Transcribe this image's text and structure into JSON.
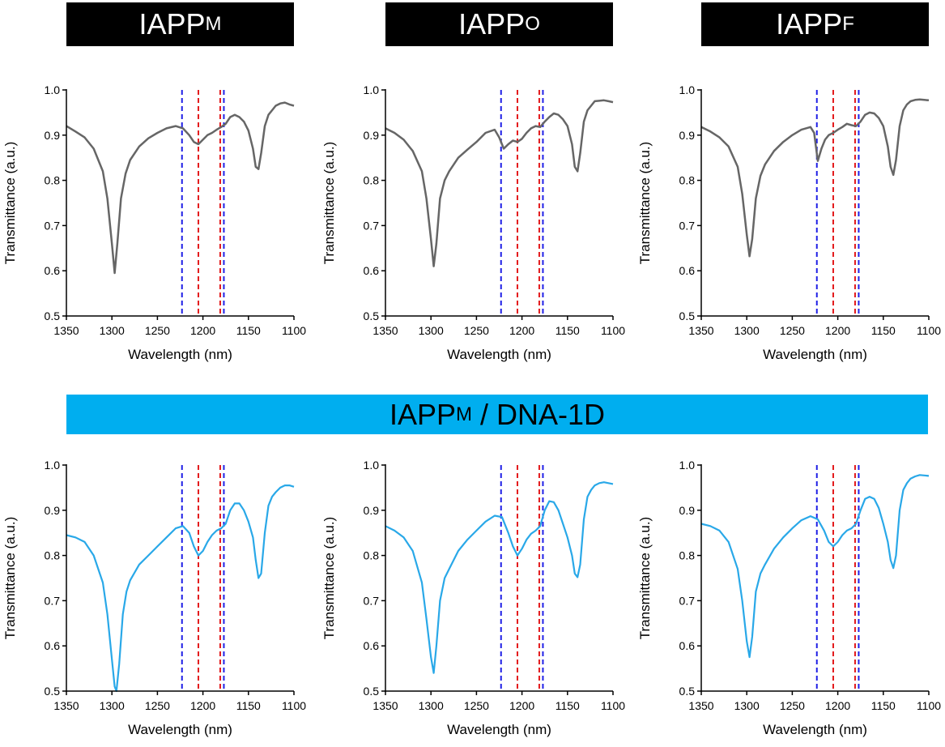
{
  "banners": [
    {
      "base": "IAPP",
      "sub": "M"
    },
    {
      "base": "IAPP",
      "sub": "O"
    },
    {
      "base": "IAPP",
      "sub": "F"
    }
  ],
  "middle_banner": {
    "base": "IAPP",
    "sub": "M",
    "suffix": " / DNA-1D"
  },
  "colors": {
    "top_series": "#666666",
    "bottom_series": "#29a8e8",
    "blue_marker": "#1f1fe6",
    "red_marker": "#e31a1c",
    "banner_black": "#000000",
    "banner_blue": "#00aeef"
  },
  "chart_data": [
    {
      "type": "line",
      "xlabel": "Wavelength (nm)",
      "ylabel": "Transmittance (a.u.)",
      "xlim": [
        1350,
        1100
      ],
      "ylim": [
        0.5,
        1.0
      ],
      "xticks": [
        "1350",
        "1300",
        "1250",
        "1200",
        "1150",
        "1100"
      ],
      "yticks": [
        "0.5",
        "0.6",
        "0.7",
        "0.8",
        "0.9",
        "1.0"
      ],
      "vlines": [
        {
          "x": 1223,
          "color": "blue"
        },
        {
          "x": 1205,
          "color": "red"
        },
        {
          "x": 1181,
          "color": "red"
        },
        {
          "x": 1177,
          "color": "blue"
        }
      ],
      "series": [
        {
          "x": [
            1350,
            1340,
            1330,
            1320,
            1310,
            1305,
            1300,
            1297,
            1294,
            1290,
            1285,
            1280,
            1270,
            1260,
            1250,
            1240,
            1230,
            1222,
            1215,
            1210,
            1205,
            1200,
            1195,
            1190,
            1185,
            1180,
            1175,
            1170,
            1165,
            1160,
            1155,
            1150,
            1145,
            1142,
            1139,
            1136,
            1132,
            1128,
            1124,
            1120,
            1115,
            1110,
            1105,
            1100
          ],
          "y": [
            0.92,
            0.908,
            0.895,
            0.87,
            0.82,
            0.76,
            0.66,
            0.595,
            0.66,
            0.76,
            0.815,
            0.845,
            0.875,
            0.893,
            0.905,
            0.915,
            0.92,
            0.915,
            0.9,
            0.885,
            0.88,
            0.89,
            0.9,
            0.905,
            0.912,
            0.918,
            0.925,
            0.94,
            0.945,
            0.94,
            0.93,
            0.91,
            0.87,
            0.83,
            0.825,
            0.86,
            0.92,
            0.945,
            0.955,
            0.965,
            0.97,
            0.972,
            0.968,
            0.965
          ]
        }
      ]
    },
    {
      "type": "line",
      "xlabel": "Wavelength (nm)",
      "ylabel": "Transmittance (a.u.)",
      "xlim": [
        1350,
        1100
      ],
      "ylim": [
        0.5,
        1.0
      ],
      "xticks": [
        "1350",
        "1300",
        "1250",
        "1200",
        "1150",
        "1100"
      ],
      "yticks": [
        "0.5",
        "0.6",
        "0.7",
        "0.8",
        "0.9",
        "1.0"
      ],
      "vlines": [
        {
          "x": 1223,
          "color": "blue"
        },
        {
          "x": 1205,
          "color": "red"
        },
        {
          "x": 1181,
          "color": "red"
        },
        {
          "x": 1177,
          "color": "blue"
        }
      ],
      "series": [
        {
          "x": [
            1350,
            1340,
            1330,
            1320,
            1310,
            1305,
            1300,
            1297,
            1294,
            1290,
            1285,
            1280,
            1270,
            1260,
            1250,
            1240,
            1230,
            1225,
            1220,
            1215,
            1210,
            1205,
            1200,
            1195,
            1190,
            1185,
            1180,
            1175,
            1170,
            1165,
            1160,
            1155,
            1150,
            1145,
            1142,
            1139,
            1136,
            1132,
            1128,
            1124,
            1120,
            1115,
            1110,
            1105,
            1100
          ],
          "y": [
            0.915,
            0.905,
            0.89,
            0.865,
            0.82,
            0.76,
            0.67,
            0.61,
            0.66,
            0.76,
            0.8,
            0.82,
            0.85,
            0.868,
            0.885,
            0.905,
            0.912,
            0.895,
            0.87,
            0.88,
            0.888,
            0.885,
            0.892,
            0.905,
            0.915,
            0.92,
            0.918,
            0.93,
            0.94,
            0.948,
            0.945,
            0.935,
            0.92,
            0.88,
            0.83,
            0.82,
            0.86,
            0.93,
            0.955,
            0.965,
            0.975,
            0.976,
            0.977,
            0.975,
            0.973
          ]
        }
      ]
    },
    {
      "type": "line",
      "xlabel": "Wavelength (nm)",
      "ylabel": "Transmittance (a.u.)",
      "xlim": [
        1350,
        1100
      ],
      "ylim": [
        0.5,
        1.0
      ],
      "xticks": [
        "1350",
        "1300",
        "1250",
        "1200",
        "1150",
        "1100"
      ],
      "yticks": [
        "0.5",
        "0.6",
        "0.7",
        "0.8",
        "0.9",
        "1.0"
      ],
      "vlines": [
        {
          "x": 1223,
          "color": "blue"
        },
        {
          "x": 1205,
          "color": "red"
        },
        {
          "x": 1181,
          "color": "red"
        },
        {
          "x": 1177,
          "color": "blue"
        }
      ],
      "series": [
        {
          "x": [
            1350,
            1340,
            1330,
            1320,
            1310,
            1305,
            1300,
            1297,
            1294,
            1290,
            1285,
            1280,
            1270,
            1260,
            1250,
            1240,
            1230,
            1226,
            1222,
            1218,
            1214,
            1210,
            1205,
            1200,
            1195,
            1190,
            1185,
            1180,
            1175,
            1170,
            1165,
            1160,
            1155,
            1150,
            1145,
            1142,
            1139,
            1136,
            1132,
            1128,
            1124,
            1120,
            1115,
            1110,
            1105,
            1100
          ],
          "y": [
            0.918,
            0.908,
            0.895,
            0.875,
            0.83,
            0.77,
            0.68,
            0.632,
            0.67,
            0.76,
            0.81,
            0.835,
            0.865,
            0.885,
            0.9,
            0.912,
            0.918,
            0.905,
            0.843,
            0.87,
            0.89,
            0.9,
            0.905,
            0.912,
            0.918,
            0.925,
            0.922,
            0.92,
            0.93,
            0.945,
            0.95,
            0.948,
            0.938,
            0.92,
            0.875,
            0.83,
            0.812,
            0.845,
            0.92,
            0.955,
            0.968,
            0.975,
            0.978,
            0.979,
            0.978,
            0.977
          ]
        }
      ]
    },
    {
      "type": "line",
      "xlabel": "Wavelength (nm)",
      "ylabel": "Transmittance (a.u.)",
      "xlim": [
        1350,
        1100
      ],
      "ylim": [
        0.5,
        1.0
      ],
      "xticks": [
        "1350",
        "1300",
        "1250",
        "1200",
        "1150",
        "1100"
      ],
      "yticks": [
        "0.5",
        "0.6",
        "0.7",
        "0.8",
        "0.9",
        "1.0"
      ],
      "vlines": [
        {
          "x": 1223,
          "color": "blue"
        },
        {
          "x": 1205,
          "color": "red"
        },
        {
          "x": 1181,
          "color": "red"
        },
        {
          "x": 1177,
          "color": "blue"
        }
      ],
      "series": [
        {
          "x": [
            1350,
            1340,
            1330,
            1320,
            1310,
            1305,
            1300,
            1297,
            1295,
            1292,
            1288,
            1284,
            1280,
            1270,
            1260,
            1250,
            1240,
            1230,
            1222,
            1215,
            1210,
            1205,
            1200,
            1195,
            1190,
            1185,
            1180,
            1175,
            1170,
            1165,
            1160,
            1155,
            1150,
            1145,
            1142,
            1139,
            1136,
            1132,
            1128,
            1124,
            1120,
            1115,
            1110,
            1105,
            1100
          ],
          "y": [
            0.845,
            0.84,
            0.83,
            0.8,
            0.74,
            0.67,
            0.57,
            0.51,
            0.5,
            0.56,
            0.67,
            0.72,
            0.745,
            0.78,
            0.8,
            0.82,
            0.84,
            0.86,
            0.865,
            0.85,
            0.82,
            0.8,
            0.81,
            0.83,
            0.845,
            0.855,
            0.86,
            0.87,
            0.9,
            0.915,
            0.915,
            0.9,
            0.875,
            0.84,
            0.79,
            0.75,
            0.76,
            0.85,
            0.91,
            0.93,
            0.94,
            0.95,
            0.955,
            0.955,
            0.952
          ]
        }
      ]
    },
    {
      "type": "line",
      "xlabel": "Wavelength (nm)",
      "ylabel": "Transmittance (a.u.)",
      "xlim": [
        1350,
        1100
      ],
      "ylim": [
        0.5,
        1.0
      ],
      "xticks": [
        "1350",
        "1300",
        "1250",
        "1200",
        "1150",
        "1100"
      ],
      "yticks": [
        "0.5",
        "0.6",
        "0.7",
        "0.8",
        "0.9",
        "1.0"
      ],
      "vlines": [
        {
          "x": 1223,
          "color": "blue"
        },
        {
          "x": 1205,
          "color": "red"
        },
        {
          "x": 1181,
          "color": "red"
        },
        {
          "x": 1177,
          "color": "blue"
        }
      ],
      "series": [
        {
          "x": [
            1350,
            1340,
            1330,
            1320,
            1310,
            1305,
            1300,
            1297,
            1294,
            1290,
            1285,
            1280,
            1270,
            1260,
            1250,
            1240,
            1230,
            1222,
            1215,
            1210,
            1205,
            1200,
            1195,
            1190,
            1185,
            1180,
            1175,
            1170,
            1165,
            1160,
            1155,
            1150,
            1145,
            1142,
            1139,
            1136,
            1132,
            1128,
            1124,
            1120,
            1115,
            1110,
            1105,
            1100
          ],
          "y": [
            0.865,
            0.855,
            0.84,
            0.81,
            0.74,
            0.66,
            0.575,
            0.54,
            0.6,
            0.7,
            0.75,
            0.77,
            0.81,
            0.835,
            0.855,
            0.875,
            0.888,
            0.885,
            0.85,
            0.82,
            0.8,
            0.815,
            0.835,
            0.848,
            0.855,
            0.865,
            0.9,
            0.92,
            0.918,
            0.9,
            0.87,
            0.84,
            0.8,
            0.76,
            0.752,
            0.78,
            0.88,
            0.93,
            0.945,
            0.955,
            0.96,
            0.962,
            0.96,
            0.958
          ]
        }
      ]
    },
    {
      "type": "line",
      "xlabel": "Wavelength (nm)",
      "ylabel": "Transmittance (a.u.)",
      "xlim": [
        1350,
        1100
      ],
      "ylim": [
        0.5,
        1.0
      ],
      "xticks": [
        "1350",
        "1300",
        "1250",
        "1200",
        "1150",
        "1100"
      ],
      "yticks": [
        "0.5",
        "0.6",
        "0.7",
        "0.8",
        "0.9",
        "1.0"
      ],
      "vlines": [
        {
          "x": 1223,
          "color": "blue"
        },
        {
          "x": 1205,
          "color": "red"
        },
        {
          "x": 1181,
          "color": "red"
        },
        {
          "x": 1177,
          "color": "blue"
        }
      ],
      "series": [
        {
          "x": [
            1350,
            1340,
            1330,
            1320,
            1310,
            1305,
            1300,
            1297,
            1294,
            1290,
            1285,
            1280,
            1270,
            1260,
            1250,
            1240,
            1230,
            1222,
            1215,
            1210,
            1205,
            1200,
            1195,
            1190,
            1185,
            1180,
            1175,
            1170,
            1165,
            1160,
            1155,
            1150,
            1145,
            1142,
            1139,
            1136,
            1132,
            1128,
            1124,
            1120,
            1115,
            1110,
            1105,
            1100
          ],
          "y": [
            0.87,
            0.865,
            0.855,
            0.83,
            0.77,
            0.7,
            0.61,
            0.575,
            0.62,
            0.72,
            0.76,
            0.78,
            0.815,
            0.84,
            0.86,
            0.878,
            0.887,
            0.88,
            0.855,
            0.83,
            0.82,
            0.83,
            0.845,
            0.855,
            0.86,
            0.87,
            0.9,
            0.925,
            0.93,
            0.925,
            0.905,
            0.87,
            0.83,
            0.79,
            0.772,
            0.8,
            0.9,
            0.945,
            0.96,
            0.97,
            0.975,
            0.978,
            0.977,
            0.976
          ]
        }
      ]
    }
  ]
}
